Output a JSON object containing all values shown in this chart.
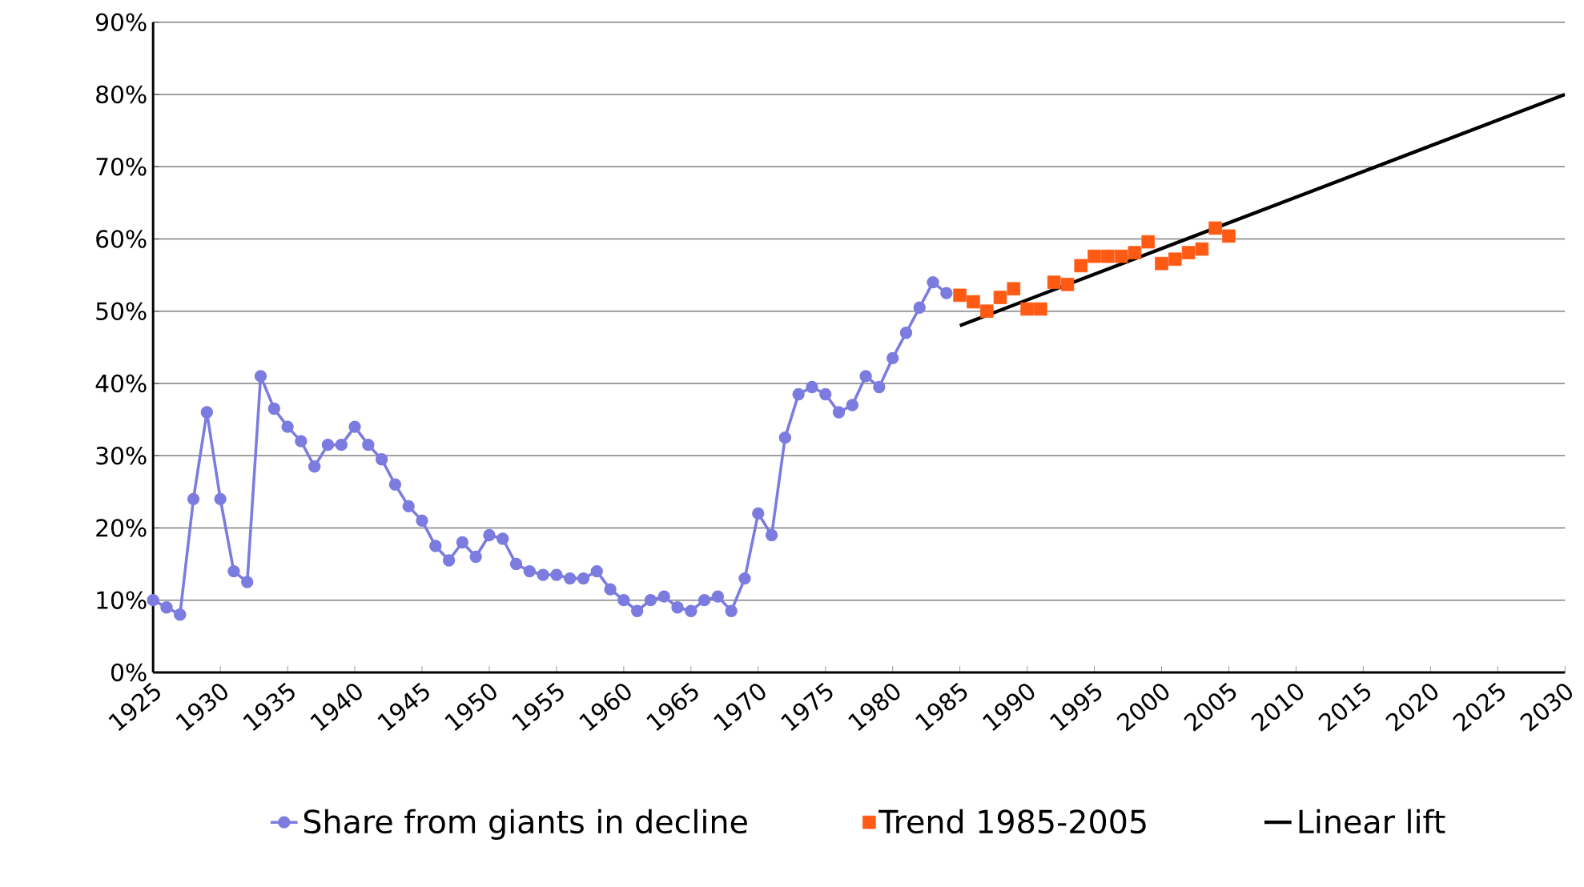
{
  "chart_data": {
    "type": "line",
    "xlim": [
      1925,
      2030
    ],
    "xticks": [
      1925,
      1930,
      1935,
      1940,
      1945,
      1950,
      1955,
      1960,
      1965,
      1970,
      1975,
      1980,
      1985,
      1990,
      1995,
      2000,
      2005,
      2010,
      2015,
      2020,
      2025,
      2030
    ],
    "ylim": [
      0,
      90
    ],
    "yticks": [
      {
        "value": 0,
        "label": "0%"
      },
      {
        "value": 10,
        "label": "10%"
      },
      {
        "value": 20,
        "label": "20%"
      },
      {
        "value": 30,
        "label": "30%"
      },
      {
        "value": 40,
        "label": "40%"
      },
      {
        "value": 50,
        "label": "50%"
      },
      {
        "value": 60,
        "label": "60%"
      },
      {
        "value": 70,
        "label": "70%"
      },
      {
        "value": 80,
        "label": "80%"
      },
      {
        "value": 90,
        "label": "90%"
      }
    ],
    "grid": "y",
    "legend": "bottom",
    "series": [
      {
        "name": "Share from giants in decline",
        "color": "#7b7be0",
        "marker": "circle",
        "line_style": "solid",
        "x": [
          1925,
          1926,
          1927,
          1928,
          1929,
          1930,
          1931,
          1932,
          1933,
          1934,
          1935,
          1936,
          1937,
          1938,
          1939,
          1940,
          1941,
          1942,
          1943,
          1944,
          1945,
          1946,
          1947,
          1948,
          1949,
          1950,
          1951,
          1952,
          1953,
          1954,
          1955,
          1956,
          1957,
          1958,
          1959,
          1960,
          1961,
          1962,
          1963,
          1964,
          1965,
          1966,
          1967,
          1968,
          1969,
          1970,
          1971,
          1972,
          1973,
          1974,
          1975,
          1976,
          1977,
          1978,
          1979,
          1980,
          1981,
          1982,
          1983,
          1984
        ],
        "values": [
          10,
          9,
          8,
          24,
          36,
          24,
          14,
          12.5,
          41,
          36.5,
          34,
          32,
          28.5,
          31.5,
          31.5,
          34,
          31.5,
          29.5,
          26,
          23,
          21,
          17.5,
          15.5,
          18,
          16,
          19,
          18.5,
          15,
          14,
          13.5,
          13.5,
          13,
          13,
          14,
          11.5,
          10,
          8.5,
          10,
          10.5,
          9,
          8.5,
          10,
          10.5,
          8.5,
          13,
          22,
          19,
          32.5,
          38.5,
          39.5,
          38.5,
          36,
          37,
          41,
          39.5,
          43.5,
          47,
          50.5,
          54,
          52.5
        ]
      },
      {
        "name": "Trend 1985-2005",
        "type": "scatter",
        "color": "#ff5a14",
        "marker": "square",
        "x": [
          1985,
          1986,
          1987,
          1988,
          1989,
          1990,
          1991,
          1992,
          1993,
          1994,
          1995,
          1996,
          1997,
          1998,
          1999,
          2000,
          2001,
          2002,
          2003,
          2004,
          2005
        ],
        "values": [
          52.2,
          51.3,
          50,
          51.9,
          53.1,
          50.3,
          50.3,
          54,
          53.7,
          56.3,
          57.6,
          57.6,
          57.6,
          58.1,
          59.6,
          56.6,
          57.2,
          58.1,
          58.6,
          61.5,
          60.4
        ]
      },
      {
        "name": "Linear lift",
        "color": "#000000",
        "marker": "none",
        "line_style": "solid",
        "x": [
          1985,
          2030
        ],
        "values": [
          48,
          80
        ]
      }
    ]
  }
}
